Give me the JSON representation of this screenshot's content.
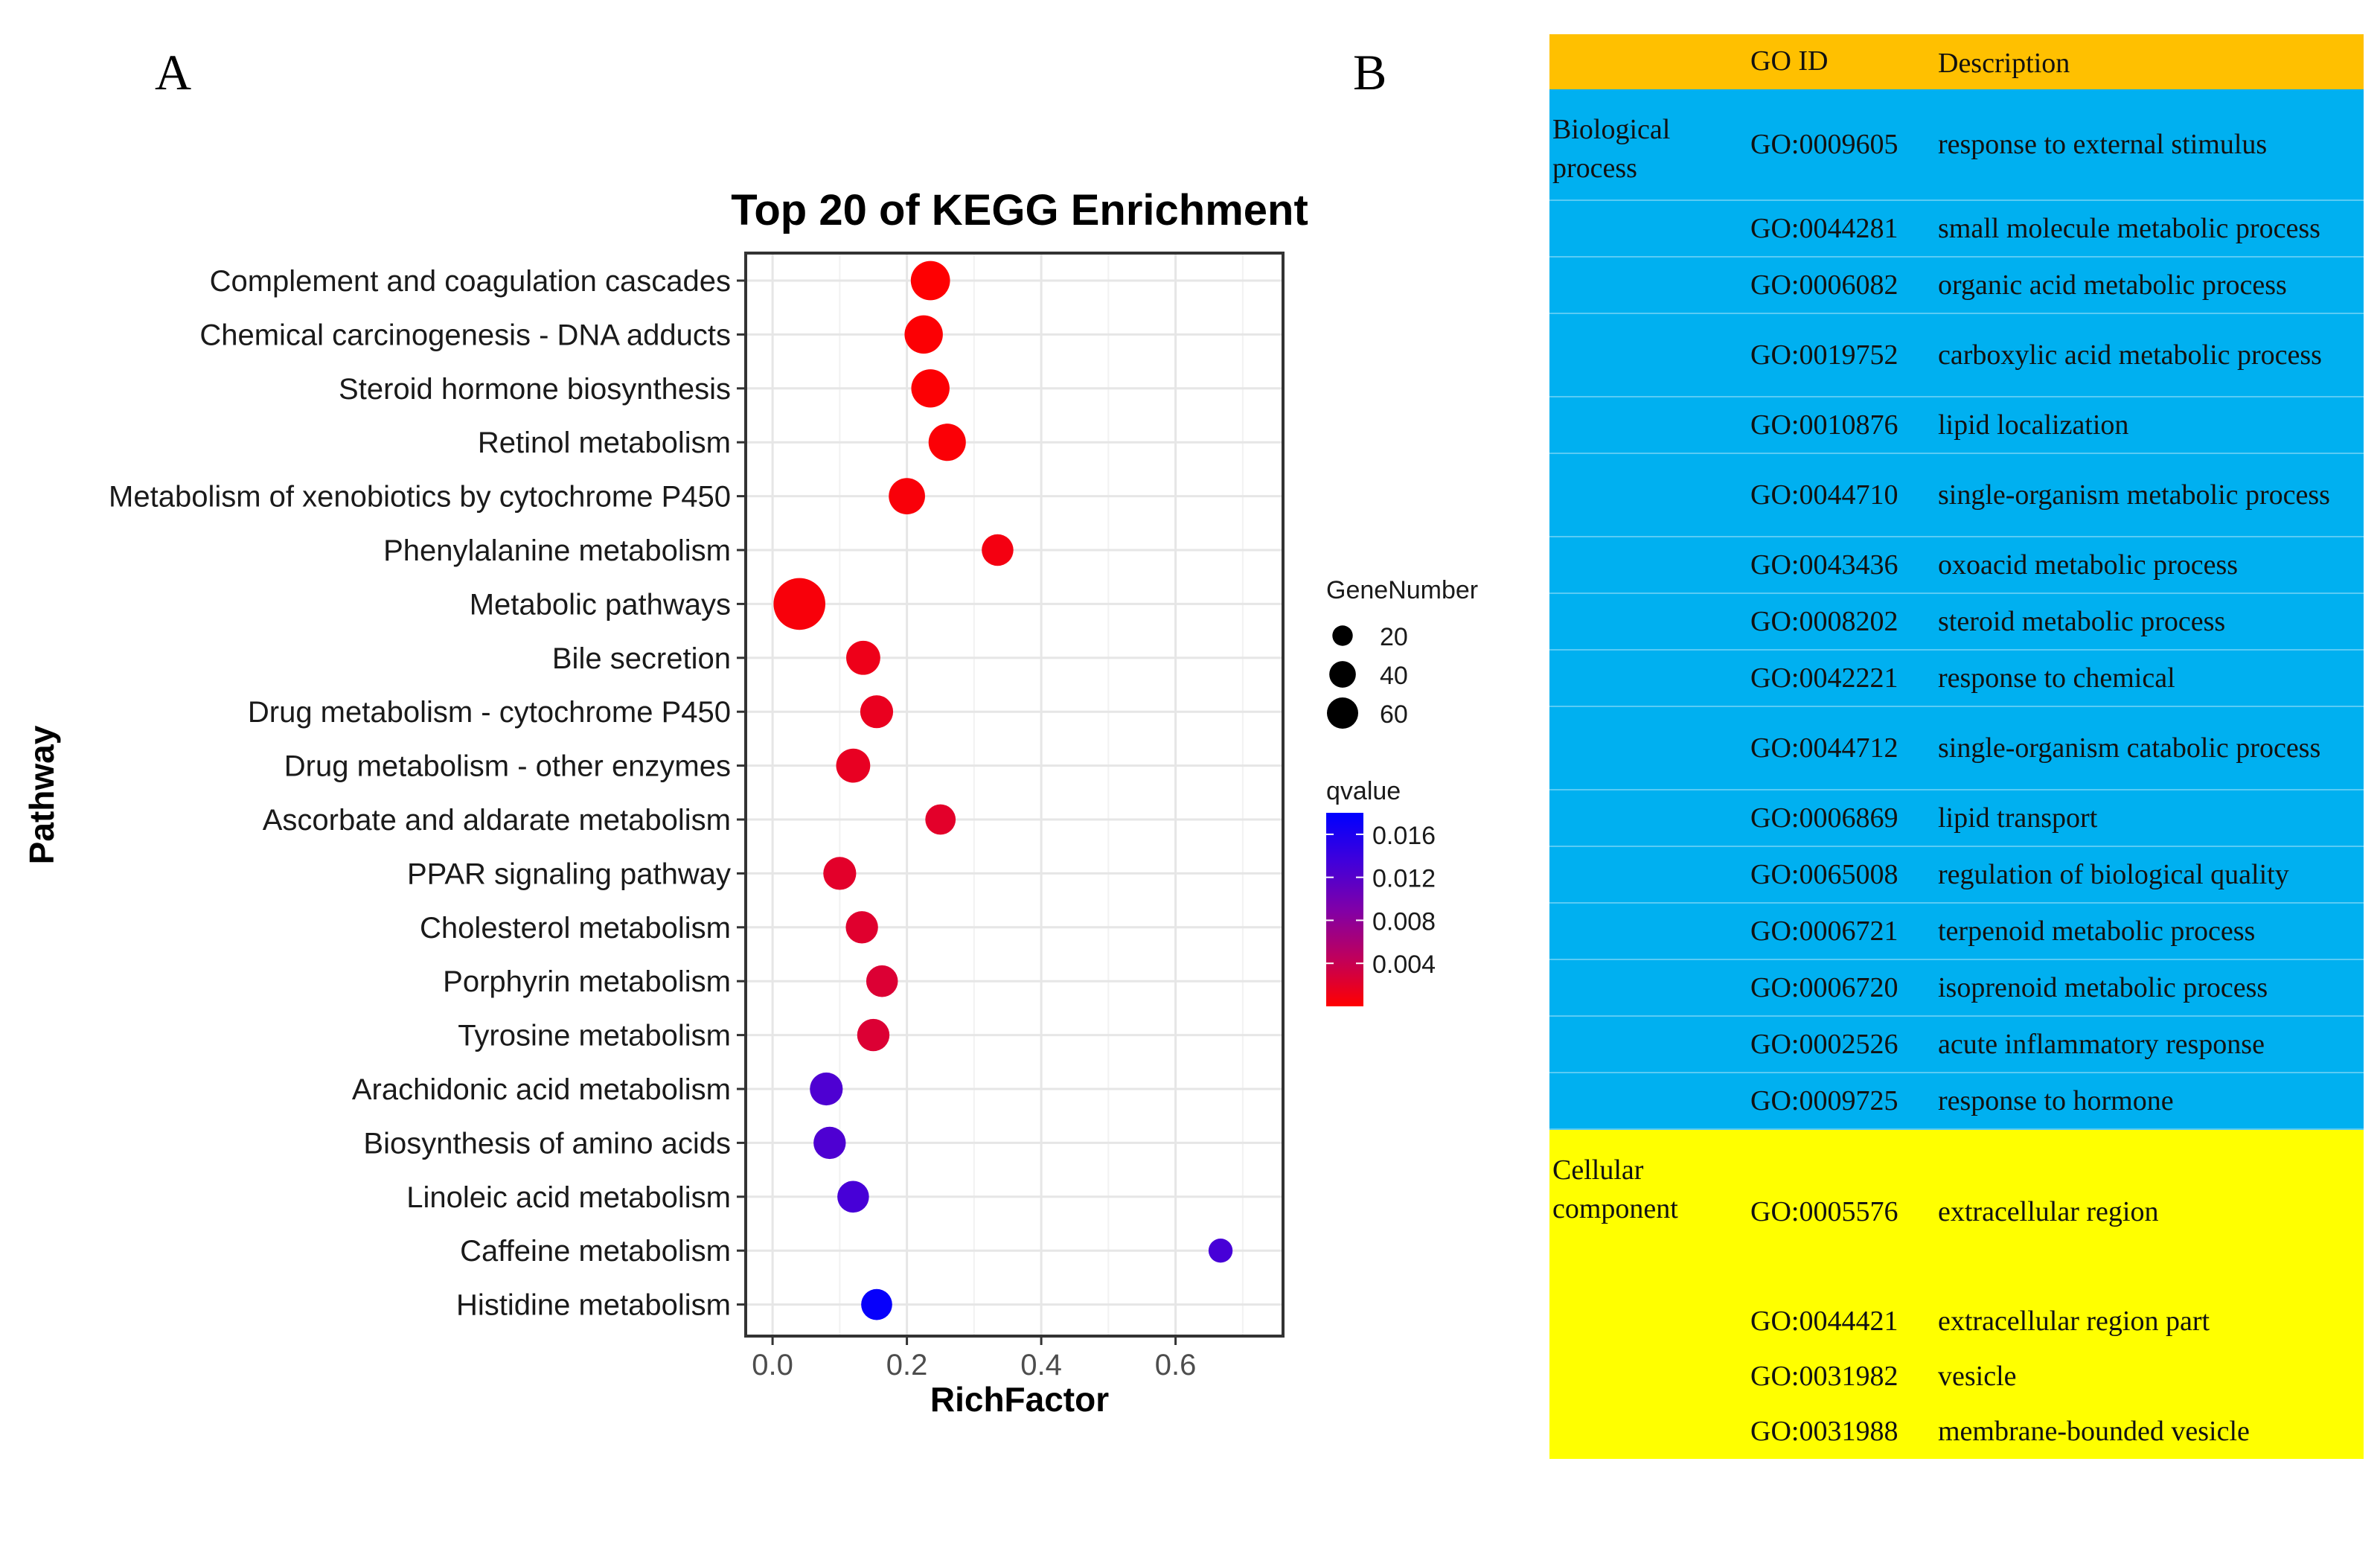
{
  "panel_labels": {
    "a": "A",
    "b": "B"
  },
  "colors": {
    "header_bg": "#FFC000",
    "bp_bg": "#00B0F0",
    "cc_bg": "#FFFF00",
    "dot_low_q": "#FF0000",
    "dot_high_q": "#0000FF",
    "dot_mid_q": "#CC00CC"
  },
  "chart_data": {
    "type": "scatter",
    "title": "Top 20 of KEGG Enrichment",
    "xlabel": "RichFactor",
    "ylabel": "Pathway",
    "xlim": [
      -0.04,
      0.76
    ],
    "xticks": [
      0.0,
      0.2,
      0.4,
      0.6
    ],
    "xtick_labels": [
      "0.0",
      "0.2",
      "0.4",
      "0.6"
    ],
    "grid": true,
    "size_legend": {
      "title": "GeneNumber",
      "entries": [
        {
          "value": 20,
          "label": "20"
        },
        {
          "value": 40,
          "label": "40"
        },
        {
          "value": 60,
          "label": "60"
        }
      ]
    },
    "color_legend": {
      "title": "qvalue",
      "range": [
        0.0,
        0.018
      ],
      "ticks": [
        0.016,
        0.012,
        0.008,
        0.004
      ],
      "tick_labels": [
        "0.016",
        "0.012",
        "0.008",
        "0.004"
      ]
    },
    "points": [
      {
        "pathway": "Complement and coagulation cascades",
        "rich_factor": 0.235,
        "gene_number": 32,
        "qvalue": 0.0001
      },
      {
        "pathway": "Chemical carcinogenesis - DNA adducts",
        "rich_factor": 0.225,
        "gene_number": 30,
        "qvalue": 0.0002
      },
      {
        "pathway": "Steroid hormone biosynthesis",
        "rich_factor": 0.235,
        "gene_number": 30,
        "qvalue": 0.0002
      },
      {
        "pathway": "Retinol metabolism",
        "rich_factor": 0.26,
        "gene_number": 28,
        "qvalue": 0.0003
      },
      {
        "pathway": "Metabolism of xenobiotics by cytochrome P450",
        "rich_factor": 0.2,
        "gene_number": 26,
        "qvalue": 0.0004
      },
      {
        "pathway": "Phenylalanine metabolism",
        "rich_factor": 0.335,
        "gene_number": 18,
        "qvalue": 0.0008
      },
      {
        "pathway": "Metabolic pathways",
        "rich_factor": 0.04,
        "gene_number": 64,
        "qvalue": 0.0005
      },
      {
        "pathway": "Bile secretion",
        "rich_factor": 0.135,
        "gene_number": 22,
        "qvalue": 0.0012
      },
      {
        "pathway": "Drug metabolism - cytochrome P450",
        "rich_factor": 0.155,
        "gene_number": 20,
        "qvalue": 0.0015
      },
      {
        "pathway": "Drug metabolism - other enzymes",
        "rich_factor": 0.12,
        "gene_number": 22,
        "qvalue": 0.0016
      },
      {
        "pathway": "Ascorbate and aldarate metabolism",
        "rich_factor": 0.25,
        "gene_number": 16,
        "qvalue": 0.002
      },
      {
        "pathway": "PPAR signaling pathway",
        "rich_factor": 0.1,
        "gene_number": 20,
        "qvalue": 0.002
      },
      {
        "pathway": "Cholesterol metabolism",
        "rich_factor": 0.133,
        "gene_number": 19,
        "qvalue": 0.0022
      },
      {
        "pathway": "Porphyrin metabolism",
        "rich_factor": 0.163,
        "gene_number": 18,
        "qvalue": 0.0025
      },
      {
        "pathway": "Tyrosine metabolism",
        "rich_factor": 0.15,
        "gene_number": 19,
        "qvalue": 0.0025
      },
      {
        "pathway": "Arachidonic acid metabolism",
        "rich_factor": 0.08,
        "gene_number": 20,
        "qvalue": 0.0125
      },
      {
        "pathway": "Biosynthesis of amino acids",
        "rich_factor": 0.085,
        "gene_number": 19,
        "qvalue": 0.0125
      },
      {
        "pathway": "Linoleic acid metabolism",
        "rich_factor": 0.12,
        "gene_number": 18,
        "qvalue": 0.013
      },
      {
        "pathway": "Caffeine metabolism",
        "rich_factor": 0.667,
        "gene_number": 8,
        "qvalue": 0.013
      },
      {
        "pathway": "Histidine metabolism",
        "rich_factor": 0.155,
        "gene_number": 17,
        "qvalue": 0.0175
      }
    ]
  },
  "go_table": {
    "header": {
      "id": "GO ID",
      "desc": "Description"
    },
    "sections": [
      {
        "category": "Biological process",
        "key": "bp",
        "rows": [
          {
            "id": "GO:0009605",
            "desc": "response to external stimulus"
          },
          {
            "id": "GO:0044281",
            "desc": "small molecule metabolic process"
          },
          {
            "id": "GO:0006082",
            "desc": "organic acid metabolic process"
          },
          {
            "id": "GO:0019752",
            "desc": "carboxylic acid metabolic process"
          },
          {
            "id": "GO:0010876",
            "desc": "lipid localization"
          },
          {
            "id": "GO:0044710",
            "desc": "single-organism metabolic process"
          },
          {
            "id": "GO:0043436",
            "desc": "oxoacid metabolic process"
          },
          {
            "id": "GO:0008202",
            "desc": "steroid metabolic process"
          },
          {
            "id": "GO:0042221",
            "desc": "response to chemical"
          },
          {
            "id": "GO:0044712",
            "desc": "single-organism catabolic process"
          },
          {
            "id": "GO:0006869",
            "desc": "lipid transport"
          },
          {
            "id": "GO:0065008",
            "desc": "regulation of biological quality"
          },
          {
            "id": "GO:0006721",
            "desc": "terpenoid metabolic process"
          },
          {
            "id": "GO:0006720",
            "desc": "isoprenoid metabolic process"
          },
          {
            "id": "GO:0002526",
            "desc": "acute inflammatory response"
          },
          {
            "id": "GO:0009725",
            "desc": "response to hormone"
          }
        ]
      },
      {
        "category": "Cellular component",
        "key": "cc",
        "rows": [
          {
            "id": "GO:0005576",
            "desc": "extracellular region"
          },
          {
            "id": "GO:0044421",
            "desc": "extracellular region part"
          },
          {
            "id": "GO:0031982",
            "desc": "vesicle"
          },
          {
            "id": "GO:0031988",
            "desc": "membrane-bounded vesicle"
          }
        ]
      }
    ]
  }
}
